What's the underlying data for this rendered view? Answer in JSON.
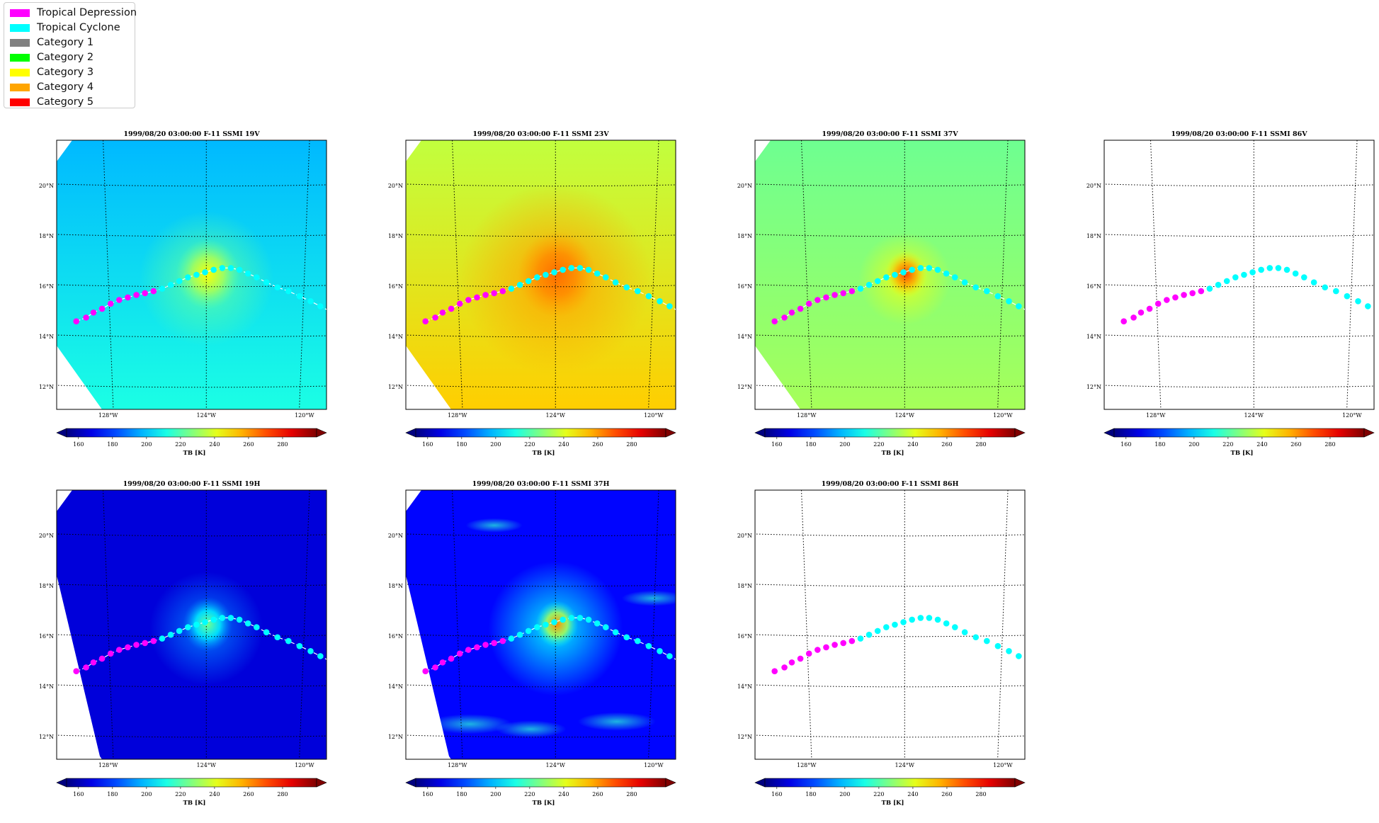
{
  "legend": {
    "items": [
      {
        "label": "Tropical Depression",
        "color": "#ff00ff"
      },
      {
        "label": "Tropical Cyclone",
        "color": "#00ffff"
      },
      {
        "label": "Category 1",
        "color": "#808080"
      },
      {
        "label": "Category 2",
        "color": "#00ff00"
      },
      {
        "label": "Category 3",
        "color": "#ffff00"
      },
      {
        "label": "Category 4",
        "color": "#ffa500"
      },
      {
        "label": "Category 5",
        "color": "#ff0000"
      }
    ]
  },
  "colorbar": {
    "ticks": [
      160,
      180,
      200,
      220,
      240,
      260,
      280
    ],
    "range": [
      153,
      300
    ],
    "label": "TB [K]",
    "colormap": "jet"
  },
  "map_axes": {
    "lat_labels": [
      "20°N",
      "18°N",
      "16°N",
      "14°N",
      "12°N"
    ],
    "lon_labels": [
      "128°W",
      "124°W",
      "120°W"
    ]
  },
  "chart_data": [
    {
      "type": "heatmap",
      "title": "1999/08/20 03:00:00  F-11 SSMI 19V",
      "field": "19V",
      "colorbar_label": "TB [K]",
      "colorbar_ticks": [
        160,
        180,
        200,
        220,
        240,
        260,
        280
      ]
    },
    {
      "type": "heatmap",
      "title": "1999/08/20 03:00:00  F-11 SSMI 23V",
      "field": "23V",
      "colorbar_label": "TB [K]",
      "colorbar_ticks": [
        160,
        180,
        200,
        220,
        240,
        260,
        280
      ]
    },
    {
      "type": "heatmap",
      "title": "1999/08/20 03:00:00  F-11 SSMI 37V",
      "field": "37V",
      "colorbar_label": "TB [K]",
      "colorbar_ticks": [
        160,
        180,
        200,
        220,
        240,
        260,
        280
      ]
    },
    {
      "type": "heatmap",
      "title": "1999/08/20 03:00:00  F-11 SSMI 86V",
      "field": "86V",
      "colorbar_label": "TB [K]",
      "colorbar_ticks": [
        160,
        180,
        200,
        220,
        240,
        260,
        280
      ]
    },
    {
      "type": "heatmap",
      "title": "1999/08/20 03:00:00  F-11 SSMI 19H",
      "field": "19H",
      "colorbar_label": "TB [K]",
      "colorbar_ticks": [
        160,
        180,
        200,
        220,
        240,
        260,
        280
      ]
    },
    {
      "type": "heatmap",
      "title": "1999/08/20 03:00:00  F-11 SSMI 37H",
      "field": "37H",
      "colorbar_label": "TB [K]",
      "colorbar_ticks": [
        160,
        180,
        200,
        220,
        240,
        260,
        280
      ]
    },
    {
      "type": "heatmap",
      "title": "1999/08/20 03:00:00  F-11 SSMI 86H",
      "field": "86H",
      "colorbar_label": "TB [K]",
      "colorbar_ticks": [
        160,
        180,
        200,
        220,
        240,
        260,
        280
      ]
    }
  ],
  "track": {
    "lon": [
      -129.3,
      -128.9,
      -128.6,
      -128.25,
      -127.9,
      -127.55,
      -127.2,
      -126.85,
      -126.5,
      -126.15,
      -125.8,
      -125.45,
      -125.1,
      -124.75,
      -124.4,
      -124.05,
      -123.7,
      -123.35,
      -123.0,
      -122.65,
      -122.3,
      -121.95,
      -121.55,
      -121.1,
      -120.65,
      -120.2,
      -119.75,
      -119.35,
      -118.95
    ],
    "lat": [
      14.6,
      14.75,
      14.95,
      15.1,
      15.3,
      15.45,
      15.55,
      15.65,
      15.72,
      15.8,
      15.9,
      16.05,
      16.2,
      16.35,
      16.45,
      16.55,
      16.65,
      16.72,
      16.72,
      16.65,
      16.5,
      16.35,
      16.15,
      15.95,
      15.8,
      15.6,
      15.4,
      15.2,
      15.0
    ],
    "category": [
      "Tropical Depression",
      "Tropical Depression",
      "Tropical Depression",
      "Tropical Depression",
      "Tropical Depression",
      "Tropical Depression",
      "Tropical Depression",
      "Tropical Depression",
      "Tropical Depression",
      "Tropical Depression",
      "Tropical Cyclone",
      "Tropical Cyclone",
      "Tropical Cyclone",
      "Tropical Cyclone",
      "Tropical Cyclone",
      "Tropical Cyclone",
      "Tropical Cyclone",
      "Tropical Cyclone",
      "Tropical Cyclone",
      "Tropical Cyclone",
      "Tropical Cyclone",
      "Tropical Cyclone",
      "Tropical Cyclone",
      "Tropical Cyclone",
      "Tropical Cyclone",
      "Tropical Cyclone",
      "Tropical Cyclone",
      "Tropical Cyclone",
      "Tropical Cyclone"
    ]
  }
}
